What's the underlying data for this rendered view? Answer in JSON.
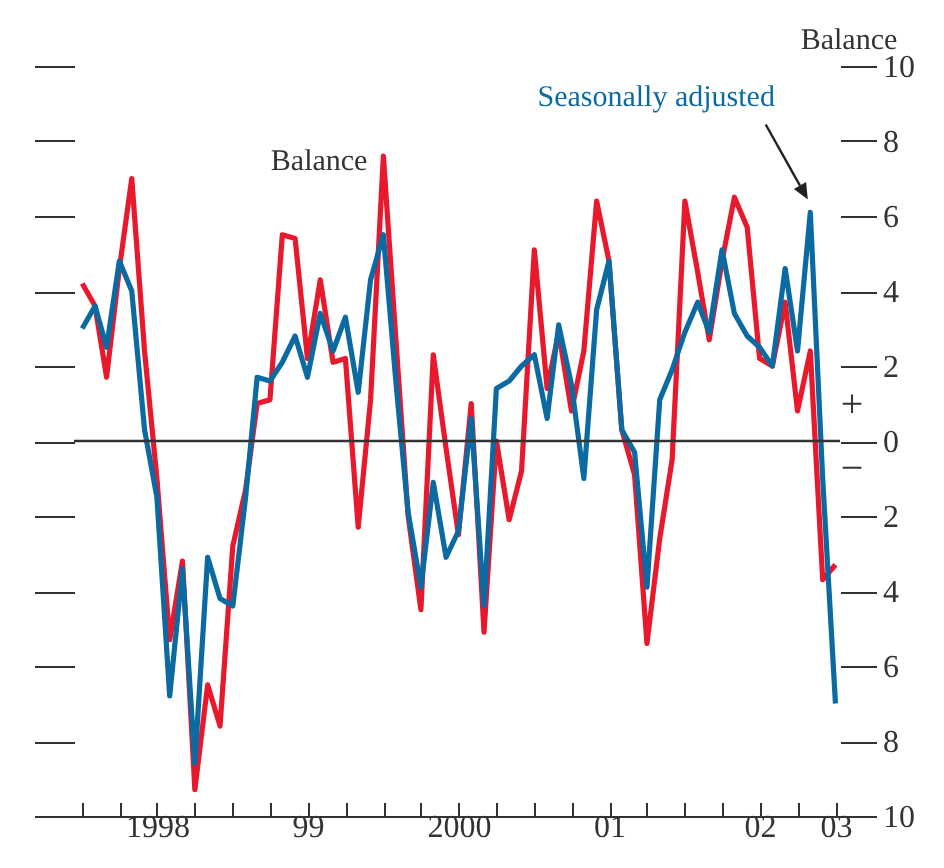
{
  "chart_data": {
    "type": "line",
    "ylabel": "Balance",
    "x": [
      "1998-01",
      "1998-02",
      "1998-03",
      "1998-04",
      "1998-05",
      "1998-06",
      "1998-07",
      "1998-08",
      "1998-09",
      "1998-10",
      "1998-11",
      "1998-12",
      "1999-01",
      "1999-02",
      "1999-03",
      "1999-04",
      "1999-05",
      "1999-06",
      "1999-07",
      "1999-08",
      "1999-09",
      "1999-10",
      "1999-11",
      "1999-12",
      "2000-01",
      "2000-02",
      "2000-03",
      "2000-04",
      "2000-05",
      "2000-06",
      "2000-07",
      "2000-08",
      "2000-09",
      "2000-10",
      "2000-11",
      "2000-12",
      "2001-01",
      "2001-02",
      "2001-03",
      "2001-04",
      "2001-05",
      "2001-06",
      "2001-07",
      "2001-08",
      "2001-09",
      "2001-10",
      "2001-11",
      "2001-12",
      "2002-01",
      "2002-02",
      "2002-03",
      "2002-04",
      "2002-05",
      "2002-06",
      "2002-07",
      "2002-08",
      "2002-09",
      "2002-10",
      "2002-11",
      "2002-12",
      "2003-01"
    ],
    "series": [
      {
        "name": "Balance",
        "color": "#e8192c",
        "values": [
          4.2,
          3.6,
          1.7,
          4.6,
          7.0,
          2.4,
          -1.0,
          -5.3,
          -3.2,
          -9.3,
          -6.5,
          -7.6,
          -2.8,
          -1.3,
          1.0,
          1.1,
          5.5,
          5.4,
          2.2,
          4.3,
          2.1,
          2.2,
          -2.3,
          1.1,
          7.6,
          2.6,
          -2.0,
          -4.5,
          2.3,
          -0.2,
          -2.5,
          1.0,
          -5.1,
          0.0,
          -2.1,
          -0.8,
          5.1,
          1.4,
          2.9,
          0.8,
          2.4,
          6.4,
          4.8,
          0.3,
          -0.9,
          -5.4,
          -2.6,
          -0.5,
          6.4,
          4.5,
          2.7,
          4.8,
          6.5,
          5.7,
          2.2,
          2.0,
          3.7,
          0.8,
          2.4,
          -3.7,
          -3.3
        ]
      },
      {
        "name": "Seasonally adjusted",
        "color": "#0a6aa1",
        "values": [
          3.0,
          3.6,
          2.5,
          4.8,
          4.0,
          0.3,
          -1.5,
          -6.8,
          -3.4,
          -8.6,
          -3.1,
          -4.2,
          -4.4,
          -1.5,
          1.7,
          1.6,
          2.1,
          2.8,
          1.7,
          3.4,
          2.4,
          3.3,
          1.3,
          4.3,
          5.5,
          1.5,
          -1.9,
          -3.9,
          -1.1,
          -3.1,
          -2.4,
          0.6,
          -4.4,
          1.4,
          1.6,
          2.0,
          2.3,
          0.6,
          3.1,
          1.5,
          -1.0,
          3.5,
          4.8,
          0.3,
          -0.3,
          -3.9,
          1.1,
          1.9,
          2.9,
          3.7,
          2.9,
          5.1,
          3.4,
          2.8,
          2.5,
          2.0,
          4.6,
          2.4,
          6.1,
          -1.0,
          -7.0
        ]
      }
    ],
    "xlim": [
      "1997-12-12",
      "2003-01-12"
    ],
    "xticks": [
      {
        "value": "1998-01",
        "label": null
      },
      {
        "value": "1998-04",
        "label": null
      },
      {
        "value": "1998-07",
        "label": "1998"
      },
      {
        "value": "1998-10",
        "label": null
      },
      {
        "value": "1999-01",
        "label": null
      },
      {
        "value": "1999-04",
        "label": null
      },
      {
        "value": "1999-07",
        "label": "99"
      },
      {
        "value": "1999-10",
        "label": null
      },
      {
        "value": "2000-01",
        "label": null
      },
      {
        "value": "2000-04",
        "label": null
      },
      {
        "value": "2000-07",
        "label": "2000"
      },
      {
        "value": "2000-10",
        "label": null
      },
      {
        "value": "2001-01",
        "label": null
      },
      {
        "value": "2001-04",
        "label": null
      },
      {
        "value": "2001-07",
        "label": "01"
      },
      {
        "value": "2001-10",
        "label": null
      },
      {
        "value": "2002-01",
        "label": null
      },
      {
        "value": "2002-04",
        "label": null
      },
      {
        "value": "2002-07",
        "label": "02"
      },
      {
        "value": "2002-10",
        "label": null
      },
      {
        "value": "2003-01",
        "label": "03"
      }
    ],
    "ylim": [
      -10,
      10
    ],
    "yticks": [
      {
        "value": -10,
        "label": "10"
      },
      {
        "value": -8,
        "label": "8"
      },
      {
        "value": -6,
        "label": "6"
      },
      {
        "value": -4,
        "label": "4"
      },
      {
        "value": -2,
        "label": "2"
      },
      {
        "value": 0,
        "label": "0"
      },
      {
        "value": 2,
        "label": "2"
      },
      {
        "value": 4,
        "label": "4"
      },
      {
        "value": 6,
        "label": "6"
      },
      {
        "value": 8,
        "label": "8"
      },
      {
        "value": 10,
        "label": "10"
      }
    ],
    "ref_lines": [
      {
        "axis": "y",
        "value": 0,
        "color": "#333333"
      }
    ],
    "annotations": [
      "+",
      "−"
    ]
  }
}
